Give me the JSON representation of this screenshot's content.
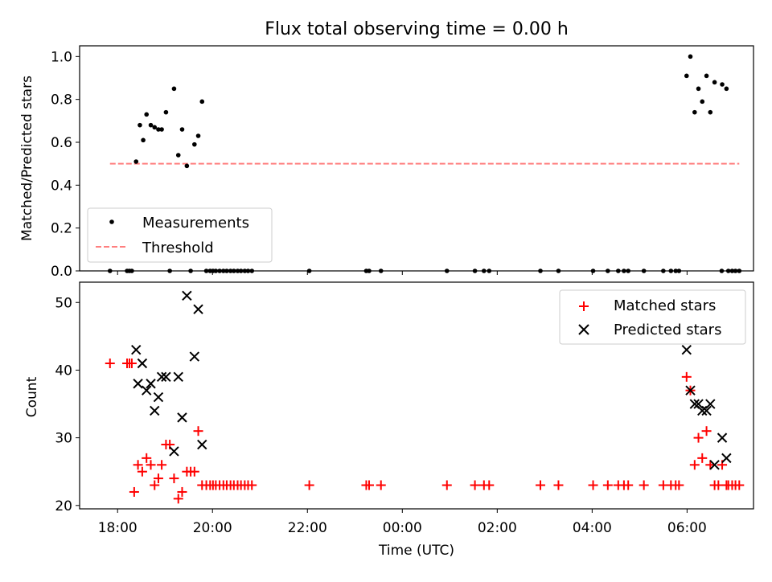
{
  "chart_data": [
    {
      "type": "scatter",
      "title": "Flux total observing time = 0.00 h",
      "xlabel": "",
      "ylabel": "Matched/Predicted stars",
      "ylim": [
        0,
        1.05
      ],
      "yticks": [
        "0.0",
        "0.2",
        "0.4",
        "0.6",
        "0.8",
        "1.0"
      ],
      "x_range_hours": [
        17.2,
        31.4
      ],
      "legend": {
        "placement": "lower-left",
        "entries": [
          "Measurements",
          "Threshold"
        ]
      },
      "series": [
        {
          "name": "Measurements",
          "marker": "dot",
          "color": "#000000",
          "x": [
            18.39,
            18.47,
            18.54,
            18.61,
            18.7,
            18.78,
            18.86,
            18.93,
            19.02,
            19.19,
            19.28,
            19.36,
            19.46,
            19.62,
            19.7,
            19.78,
            29.99,
            30.07,
            30.16,
            30.24,
            30.32,
            30.41,
            30.49,
            30.58,
            30.74,
            30.83,
            17.84,
            18.2,
            18.25,
            18.3,
            19.1,
            19.54,
            19.87,
            19.95,
            20.01,
            20.07,
            20.15,
            20.23,
            20.3,
            20.38,
            20.45,
            20.53,
            20.6,
            20.68,
            20.75,
            20.83,
            22.04,
            23.24,
            23.3,
            23.55,
            24.94,
            25.53,
            25.72,
            25.83,
            26.91,
            27.29,
            28.02,
            28.33,
            28.55,
            28.67,
            28.76,
            29.09,
            29.5,
            29.66,
            29.76,
            29.83,
            30.73,
            30.87,
            30.95,
            31.02,
            31.1
          ],
          "y": [
            0.51,
            0.68,
            0.61,
            0.73,
            0.68,
            0.67,
            0.66,
            0.66,
            0.74,
            0.85,
            0.54,
            0.66,
            0.49,
            0.59,
            0.63,
            0.79,
            0.91,
            1.0,
            0.74,
            0.85,
            0.79,
            0.91,
            0.74,
            0.88,
            0.87,
            0.85,
            0,
            0,
            0,
            0,
            0,
            0,
            0,
            0,
            0,
            0,
            0,
            0,
            0,
            0,
            0,
            0,
            0,
            0,
            0,
            0,
            0,
            0,
            0,
            0,
            0,
            0,
            0,
            0,
            0,
            0,
            0,
            0,
            0,
            0,
            0,
            0,
            0,
            0,
            0,
            0,
            0,
            0,
            0,
            0,
            0
          ]
        },
        {
          "name": "Threshold",
          "marker": "dashed-line",
          "color": "#ff7f7f",
          "x": [
            17.84,
            31.1
          ],
          "y": [
            0.5,
            0.5
          ]
        }
      ]
    },
    {
      "type": "scatter",
      "title": "",
      "xlabel": "Time (UTC)",
      "ylabel": "Count",
      "ylim": [
        19.5,
        53
      ],
      "yticks": [
        "20",
        "30",
        "40",
        "50"
      ],
      "xticks": [
        "18:00",
        "20:00",
        "22:00",
        "00:00",
        "02:00",
        "04:00",
        "06:00"
      ],
      "x_range_hours": [
        17.2,
        31.4
      ],
      "legend": {
        "placement": "upper-right",
        "entries": [
          "Matched stars",
          "Predicted stars"
        ]
      },
      "series": [
        {
          "name": "Matched stars",
          "marker": "plus",
          "color": "#ff0000",
          "x": [
            17.84,
            18.2,
            18.25,
            18.3,
            18.35,
            18.43,
            18.52,
            18.61,
            18.7,
            18.78,
            18.86,
            18.93,
            19.02,
            19.1,
            19.19,
            19.28,
            19.36,
            19.46,
            19.54,
            19.62,
            19.7,
            19.78,
            29.99,
            30.07,
            30.16,
            30.24,
            30.32,
            30.41,
            30.49,
            30.58,
            30.66,
            30.74,
            30.83,
            30.87,
            30.95,
            31.02,
            31.1,
            19.87,
            19.95,
            20.01,
            20.07,
            20.15,
            20.23,
            20.3,
            20.38,
            20.45,
            20.53,
            20.6,
            20.68,
            20.75,
            20.83,
            22.04,
            23.24,
            23.3,
            23.55,
            24.94,
            25.53,
            25.72,
            25.83,
            26.91,
            27.29,
            28.02,
            28.33,
            28.55,
            28.67,
            28.76,
            29.09,
            29.5,
            29.66,
            29.76,
            29.83
          ],
          "y": [
            41,
            41,
            41,
            41,
            22,
            26,
            25,
            27,
            26,
            23,
            24,
            26,
            29,
            29,
            24,
            21,
            22,
            25,
            25,
            25,
            31,
            23,
            39,
            37,
            26,
            30,
            27,
            31,
            26,
            23,
            23,
            26,
            23,
            23,
            23,
            23,
            23,
            23,
            23,
            23,
            23,
            23,
            23,
            23,
            23,
            23,
            23,
            23,
            23,
            23,
            23,
            23,
            23,
            23,
            23,
            23,
            23,
            23,
            23,
            23,
            23,
            23,
            23,
            23,
            23,
            23,
            23,
            23,
            23,
            23,
            23
          ]
        },
        {
          "name": "Predicted stars",
          "marker": "x",
          "color": "#000000",
          "x": [
            18.39,
            18.43,
            18.52,
            18.61,
            18.7,
            18.78,
            18.86,
            18.93,
            19.02,
            19.19,
            19.28,
            19.36,
            19.46,
            19.62,
            19.7,
            19.78,
            29.99,
            30.07,
            30.16,
            30.24,
            30.32,
            30.41,
            30.49,
            30.58,
            30.74,
            30.83
          ],
          "y": [
            43,
            38,
            41,
            37,
            38,
            34,
            36,
            39,
            39,
            28,
            39,
            33,
            51,
            42,
            49,
            29,
            43,
            37,
            35,
            35,
            34,
            34,
            35,
            26,
            30,
            27
          ]
        }
      ]
    }
  ]
}
